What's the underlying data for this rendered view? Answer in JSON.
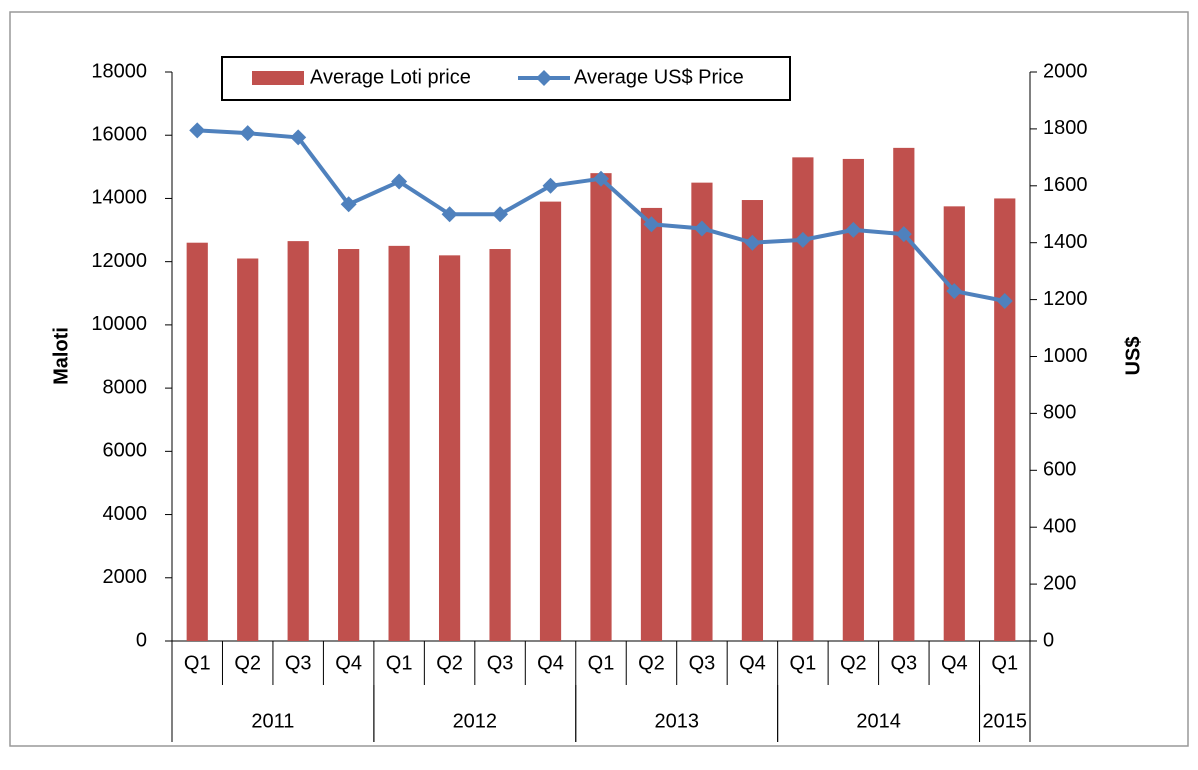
{
  "chart_data": {
    "type": "bar_line",
    "categories": [
      "Q1",
      "Q2",
      "Q3",
      "Q4",
      "Q1",
      "Q2",
      "Q3",
      "Q4",
      "Q1",
      "Q2",
      "Q3",
      "Q4",
      "Q1",
      "Q2",
      "Q3",
      "Q4",
      "Q1"
    ],
    "group_labels": [
      "2011",
      "2012",
      "2013",
      "2014",
      "2015"
    ],
    "group_sizes": [
      4,
      4,
      4,
      4,
      1
    ],
    "series": [
      {
        "name": "Average Loti price",
        "type": "bar",
        "color": "#c0504d",
        "values": [
          12600,
          12100,
          12650,
          12400,
          12500,
          12200,
          12400,
          13900,
          14800,
          13700,
          14500,
          13950,
          15300,
          15250,
          15600,
          13750,
          14000
        ]
      },
      {
        "name": "Average US$ Price",
        "type": "line",
        "axis": "y2",
        "color": "#4f81bd",
        "values": [
          1795,
          1785,
          1770,
          1535,
          1615,
          1500,
          1500,
          1600,
          1625,
          1465,
          1450,
          1400,
          1410,
          1445,
          1430,
          1230,
          1195
        ]
      }
    ],
    "ylabel": "Maloti",
    "y2label": "US$",
    "ylim": [
      0,
      18000
    ],
    "yticks": [
      0,
      2000,
      4000,
      6000,
      8000,
      10000,
      12000,
      14000,
      16000,
      18000
    ],
    "y2lim": [
      0,
      2000
    ],
    "y2ticks": [
      0,
      200,
      400,
      600,
      800,
      1000,
      1200,
      1400,
      1600,
      1800,
      2000
    ],
    "legend": "top"
  }
}
